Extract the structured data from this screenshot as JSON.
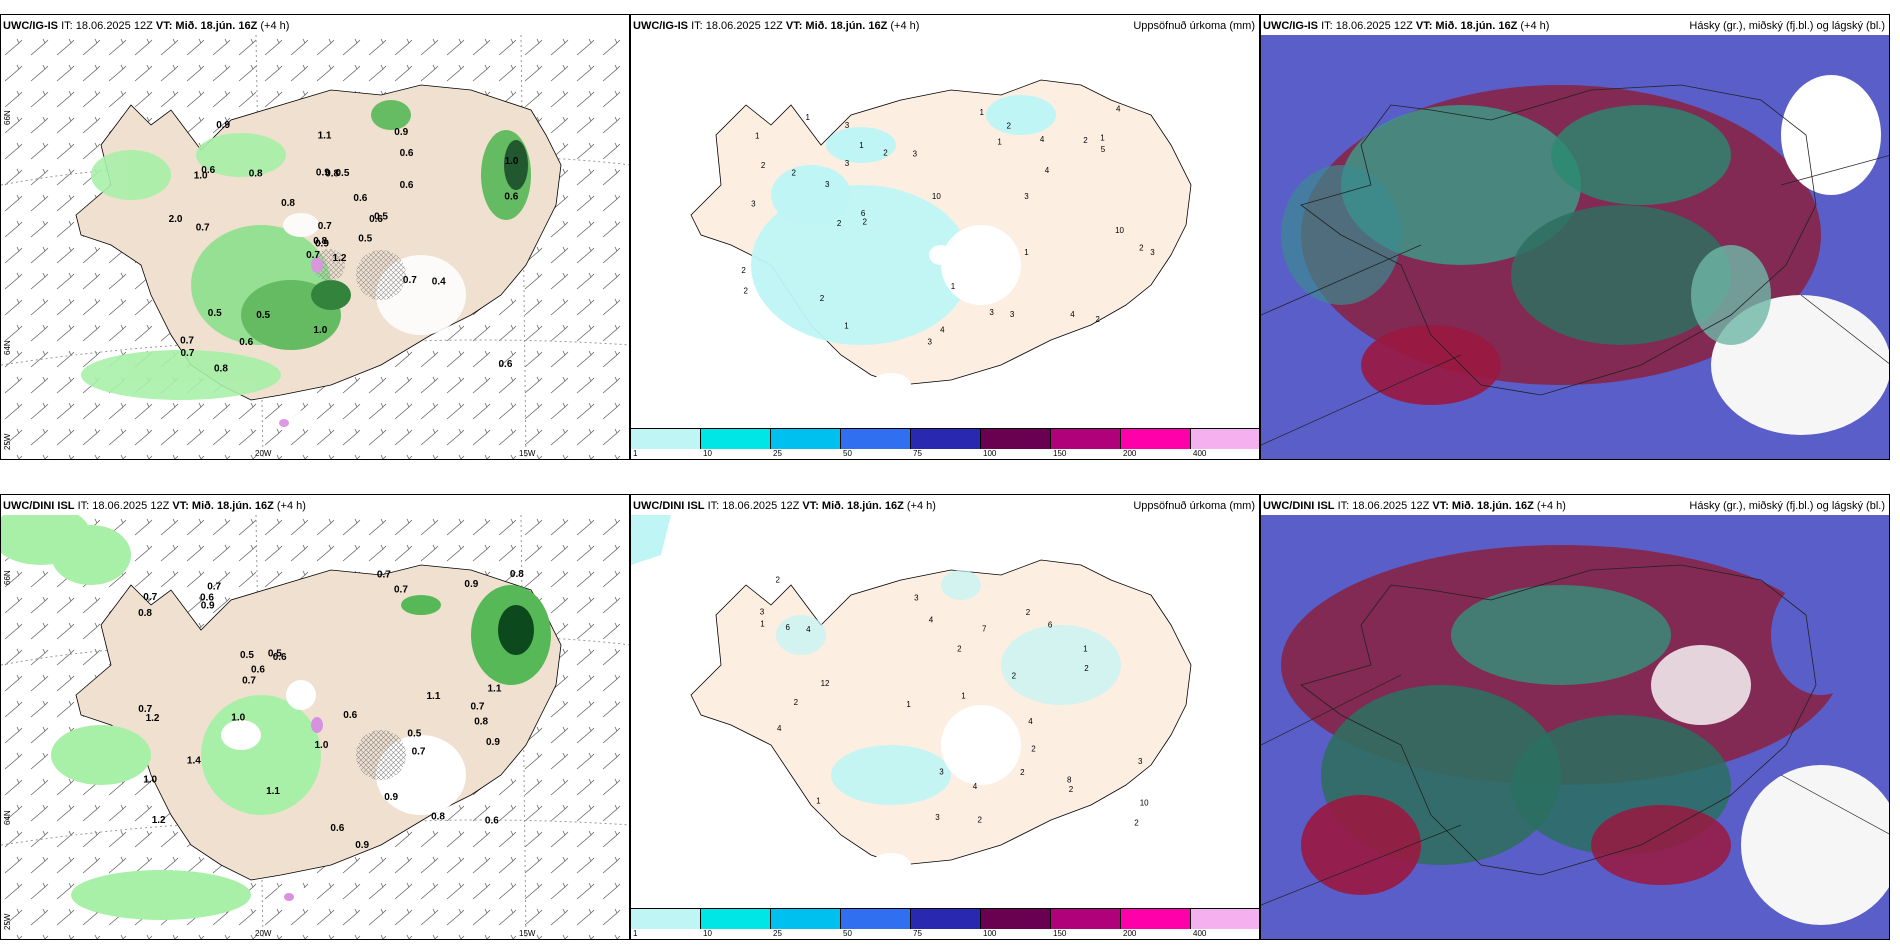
{
  "panels": [
    {
      "model": "UWC/IG-IS",
      "it": "IT: 18.06.2025 12Z",
      "vt_label": "VT:",
      "vt": "Mið. 18.jún. 16Z",
      "offset": "(+4 h)",
      "right": ""
    },
    {
      "model": "UWC/IG-IS",
      "it": "IT: 18.06.2025 12Z",
      "vt_label": "VT:",
      "vt": "Mið. 18.jún. 16Z",
      "offset": "(+4 h)",
      "right": "Uppsöfnuð úrkoma (mm)"
    },
    {
      "model": "UWC/IG-IS",
      "it": "IT: 18.06.2025 12Z",
      "vt_label": "VT:",
      "vt": "Mið. 18.jún. 16Z",
      "offset": "(+4 h)",
      "right": "Hásky (gr.), miðský (fj.bl.) og lágský (bl.)"
    },
    {
      "model": "UWC/DINI ISL",
      "it": "IT: 18.06.2025 12Z",
      "vt_label": "VT:",
      "vt": "Mið. 18.jún. 16Z",
      "offset": "(+4 h)",
      "right": ""
    },
    {
      "model": "UWC/DINI ISL",
      "it": "IT: 18.06.2025 12Z",
      "vt_label": "VT:",
      "vt": "Mið. 18.jún. 16Z",
      "offset": "(+4 h)",
      "right": "Uppsöfnuð úrkoma (mm)"
    },
    {
      "model": "UWC/DINI ISL",
      "it": "IT: 18.06.2025 12Z",
      "vt_label": "VT:",
      "vt": "Mið. 18.jún. 16Z",
      "offset": "(+4 h)",
      "right": "Hásky (gr.), miðský (fj.bl.) og lágský (bl.)"
    }
  ],
  "grid_labels": {
    "lat_top": "66N",
    "lat_bottom": "64N",
    "lon_left": "20W",
    "lon_right": "15W",
    "corner": "25W"
  },
  "scale": {
    "labels": [
      "1",
      "10",
      "25",
      "50",
      "75",
      "100",
      "150",
      "200",
      "400"
    ],
    "colors": [
      "#bff5f5",
      "#00e6e6",
      "#00c0f0",
      "#2f6ff0",
      "#2828b0",
      "#6a0050",
      "#b0007a",
      "#ff00aa",
      "#f5b0f0"
    ]
  },
  "precip_values_top": [
    "1.2",
    "1.0",
    "0.9",
    "0.7",
    "0.6",
    "0.5",
    "0.9",
    "0.5",
    "0.6",
    "0.5",
    "0.9",
    "0.6",
    "0.7",
    "1.0",
    "0.7",
    "0.6",
    "0.8",
    "0.9",
    "0.6",
    "0.5",
    "0.8",
    "0.7",
    "0.6",
    "0.8",
    "0.5",
    "0.4",
    "0.6",
    "1.1",
    "2.0",
    "0.7",
    "0.6",
    "0.8",
    "1.0",
    "0.7",
    "0.8"
  ],
  "precip_values_bottom": [
    "0.5",
    "0.8",
    "1.2",
    "0.7",
    "0.6",
    "0.8",
    "1.0",
    "0.7",
    "0.5",
    "0.9",
    "0.8",
    "0.7",
    "0.7",
    "0.6",
    "1.1",
    "1.1",
    "1.0",
    "0.6",
    "0.5",
    "1.4",
    "0.8",
    "0.9",
    "0.7",
    "0.9",
    "0.7",
    "0.6",
    "0.7",
    "1.2",
    "0.9",
    "1.1",
    "0.6",
    "0.9",
    "0.6",
    "1.0",
    "0.7"
  ],
  "accum_values_top": [
    "2",
    "3",
    "3",
    "4",
    "2",
    "3",
    "1",
    "2",
    "1",
    "3",
    "2",
    "1",
    "4",
    "2",
    "3",
    "1",
    "6",
    "3",
    "2",
    "3",
    "4",
    "10",
    "10",
    "1",
    "4",
    "3",
    "5",
    "2",
    "1",
    "2",
    "2",
    "3",
    "4",
    "2",
    "1",
    "3",
    "2",
    "1",
    "1",
    "2"
  ],
  "accum_values_bottom": [
    "2",
    "2",
    "3",
    "1",
    "3",
    "4",
    "2",
    "2",
    "12",
    "4",
    "8",
    "7",
    "4",
    "6",
    "10",
    "6",
    "3",
    "2",
    "4",
    "2",
    "1",
    "3",
    "2",
    "1",
    "2",
    "4",
    "2",
    "2",
    "1",
    "3",
    "1",
    "2"
  ]
}
